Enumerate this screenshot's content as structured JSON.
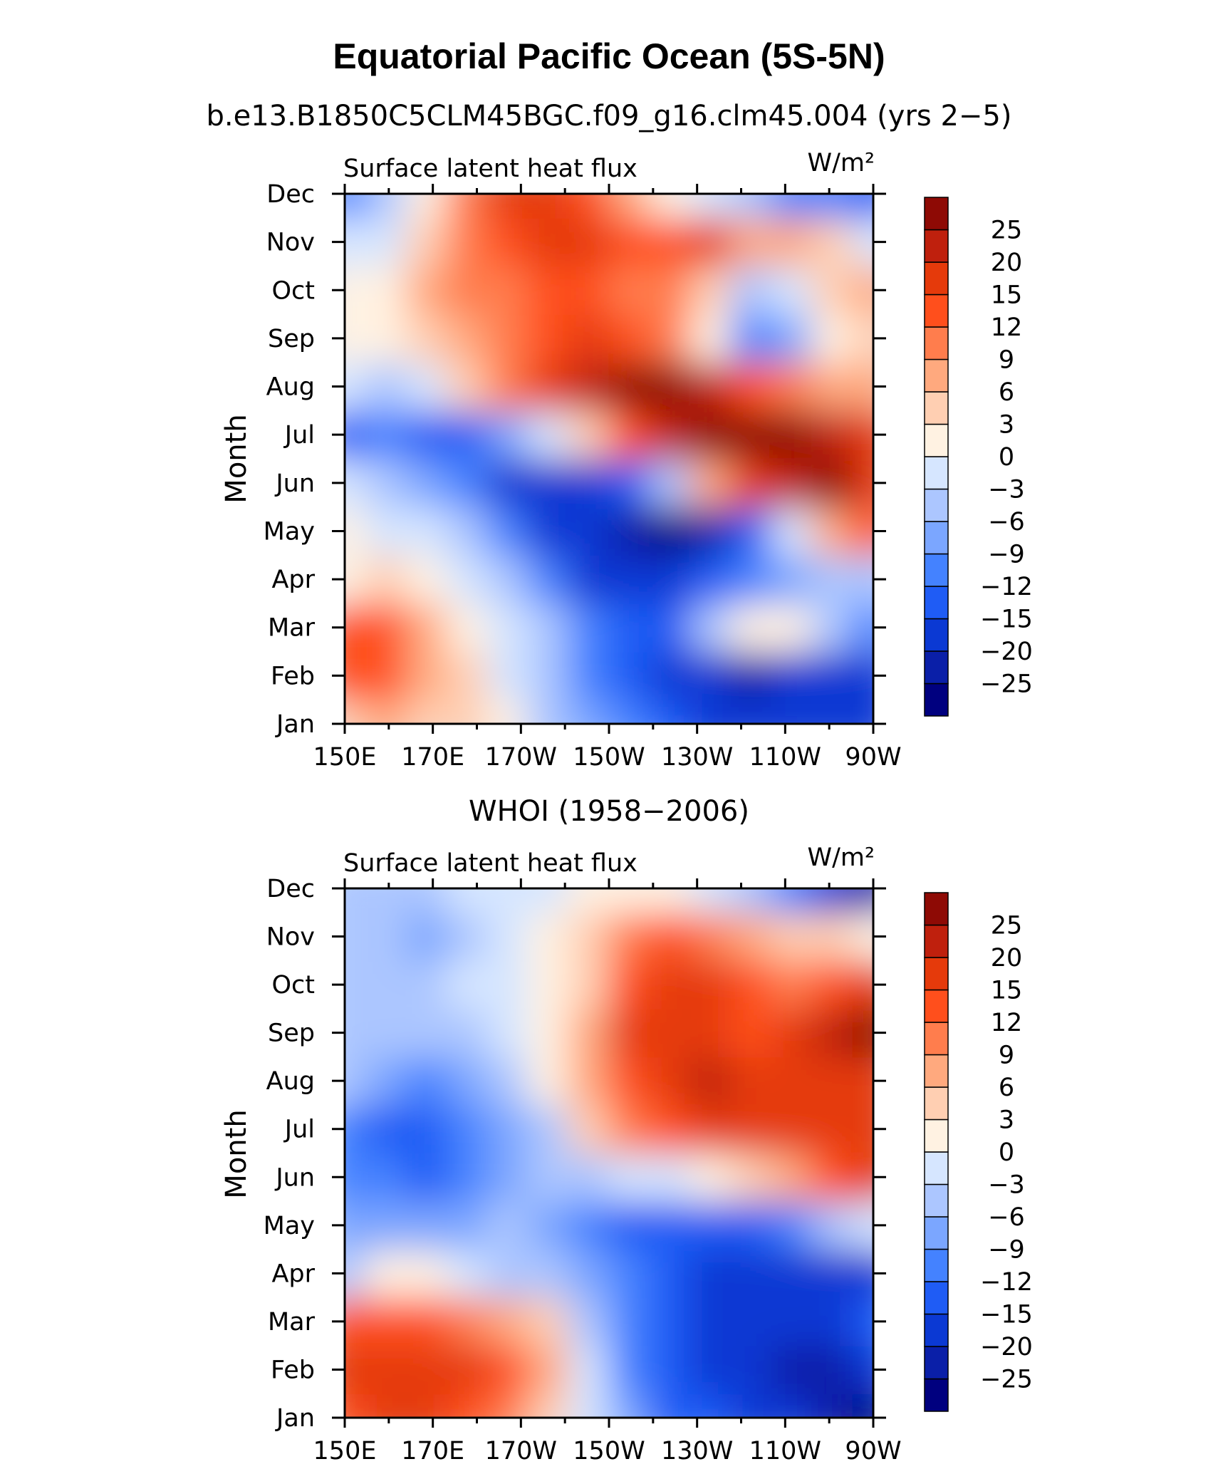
{
  "figure": {
    "title": "Equatorial Pacific Ocean (5S-5N)",
    "colors": [
      "#00007f",
      "#0a1fa8",
      "#0b39d3",
      "#1f5cf5",
      "#4482ff",
      "#7ba6ff",
      "#acc6ff",
      "#d6e6ff",
      "#fff2e2",
      "#ffcfb2",
      "#ffa97e",
      "#ff7d4d",
      "#ff4f1c",
      "#e53a0b",
      "#bf200d",
      "#8e0a05"
    ],
    "levels": [
      "-25",
      "-20",
      "-15",
      "-12",
      "-9",
      "-6",
      "-3",
      "0",
      "3",
      "6",
      "9",
      "12",
      "15",
      "20",
      "25"
    ]
  },
  "chart_data": [
    {
      "type": "heatmap",
      "subtitle": "b.e13.B1850C5CLM45BGC.f09_g16.clm45.004 (yrs 2−5)",
      "left_label": "Surface latent heat flux",
      "right_label": "W/m²",
      "xlabel": "",
      "ylabel": "Month",
      "x_ticklabels": [
        "150E",
        "170E",
        "170W",
        "150W",
        "130W",
        "110W",
        "90W"
      ],
      "y_ticklabels": [
        "Jan",
        "Feb",
        "Mar",
        "Apr",
        "May",
        "Jun",
        "Jul",
        "Aug",
        "Sep",
        "Oct",
        "Nov",
        "Dec"
      ],
      "xlim": [
        "150E",
        "90W"
      ],
      "ylim": [
        "Jan",
        "Dec"
      ],
      "colorbar_levels": [
        "−25",
        "−20",
        "−15",
        "−12",
        "−9",
        "−6",
        "−3",
        "0",
        "3",
        "6",
        "9",
        "12",
        "15",
        "20",
        "25"
      ],
      "values": [
        [
          3,
          8,
          4,
          3,
          1,
          -5,
          -8,
          -12,
          -15,
          -17,
          -18,
          -18,
          -19,
          -20
        ],
        [
          12,
          14,
          6,
          3,
          -1,
          -6,
          -10,
          -14,
          -17,
          -18,
          -22,
          -20,
          -18,
          -16
        ],
        [
          14,
          12,
          6,
          1,
          -2,
          -6,
          -12,
          -14,
          -13,
          -4,
          2,
          1,
          -4,
          -10
        ],
        [
          2,
          4,
          2,
          -2,
          -5,
          -12,
          -16,
          -17,
          -16,
          -15,
          -12,
          -8,
          -6,
          -5
        ],
        [
          1,
          -2,
          -2,
          -5,
          -10,
          -17,
          -20,
          -24,
          -26,
          -24,
          -15,
          -2,
          6,
          12
        ],
        [
          -3,
          -6,
          -8,
          -12,
          -18,
          -20,
          -18,
          -14,
          -6,
          6,
          18,
          24,
          26,
          18
        ],
        [
          -14,
          -11,
          -13,
          -14,
          -8,
          -2,
          4,
          14,
          22,
          26,
          27,
          26,
          22,
          16
        ],
        [
          -1,
          -6,
          -3,
          3,
          10,
          18,
          24,
          27,
          25,
          20,
          14,
          10,
          8,
          6
        ],
        [
          2,
          0,
          3,
          6,
          10,
          14,
          16,
          14,
          10,
          2,
          -10,
          -8,
          0,
          4
        ],
        [
          0,
          1,
          6,
          9,
          10,
          12,
          12,
          10,
          9,
          4,
          -4,
          -2,
          4,
          6
        ],
        [
          -3,
          -2,
          4,
          9,
          13,
          15,
          16,
          14,
          12,
          16,
          8,
          6,
          3,
          -2
        ],
        [
          -10,
          -4,
          1,
          10,
          15,
          18,
          14,
          8,
          2,
          -3,
          -6,
          -10,
          -12,
          -15
        ]
      ]
    },
    {
      "type": "heatmap",
      "subtitle": "WHOI (1958−2006)",
      "left_label": "Surface latent heat flux",
      "right_label": "W/m²",
      "xlabel": "",
      "ylabel": "Month",
      "x_ticklabels": [
        "150E",
        "170E",
        "170W",
        "150W",
        "130W",
        "110W",
        "90W"
      ],
      "y_ticklabels": [
        "Jan",
        "Feb",
        "Mar",
        "Apr",
        "May",
        "Jun",
        "Jul",
        "Aug",
        "Sep",
        "Oct",
        "Nov",
        "Dec"
      ],
      "xlim": [
        "150E",
        "90W"
      ],
      "ylim": [
        "Jan",
        "Dec"
      ],
      "colorbar_levels": [
        "−25",
        "−20",
        "−15",
        "−12",
        "−9",
        "−6",
        "−3",
        "0",
        "3",
        "6",
        "9",
        "12",
        "15",
        "20",
        "25"
      ],
      "values": [
        [
          14,
          15,
          16,
          12,
          10,
          5,
          -2,
          -9,
          -13,
          -15,
          -19,
          -20,
          -22,
          -26
        ],
        [
          16,
          18,
          19,
          16,
          12,
          6,
          -3,
          -10,
          -14,
          -18,
          -20,
          -22,
          -23,
          -20
        ],
        [
          12,
          14,
          12,
          10,
          7,
          3,
          -4,
          -10,
          -14,
          -16,
          -17,
          -17,
          -17,
          -15
        ],
        [
          -4,
          1,
          2,
          -3,
          -4,
          -6,
          -9,
          -12,
          -15,
          -17,
          -19,
          -20,
          -18,
          -17
        ],
        [
          -7,
          -8,
          -8,
          -7,
          -6,
          -8,
          -11,
          -13,
          -15,
          -15,
          -14,
          -10,
          -6,
          -3
        ],
        [
          -12,
          -12,
          -13,
          -11,
          -8,
          -6,
          -4,
          -3,
          -1,
          2,
          4,
          8,
          12,
          15
        ],
        [
          -10,
          -14,
          -15,
          -11,
          -7,
          -4,
          3,
          10,
          14,
          16,
          16,
          19,
          18,
          16
        ],
        [
          -6,
          -8,
          -10,
          -7,
          -4,
          0,
          6,
          14,
          18,
          20,
          18,
          17,
          19,
          18
        ],
        [
          -4,
          -6,
          -6,
          -4,
          -1,
          1,
          6,
          15,
          18,
          17,
          14,
          18,
          22,
          25
        ],
        [
          -6,
          -5,
          -6,
          -3,
          -2,
          0,
          5,
          12,
          15,
          15,
          12,
          10,
          14,
          16
        ],
        [
          -4,
          -5,
          -7,
          -4,
          -2,
          1,
          5,
          10,
          12,
          10,
          6,
          4,
          3,
          2
        ],
        [
          -5,
          -4,
          -4,
          -3,
          -2,
          -1,
          1,
          2,
          0,
          -3,
          -6,
          -12,
          -18,
          -22
        ]
      ]
    }
  ]
}
